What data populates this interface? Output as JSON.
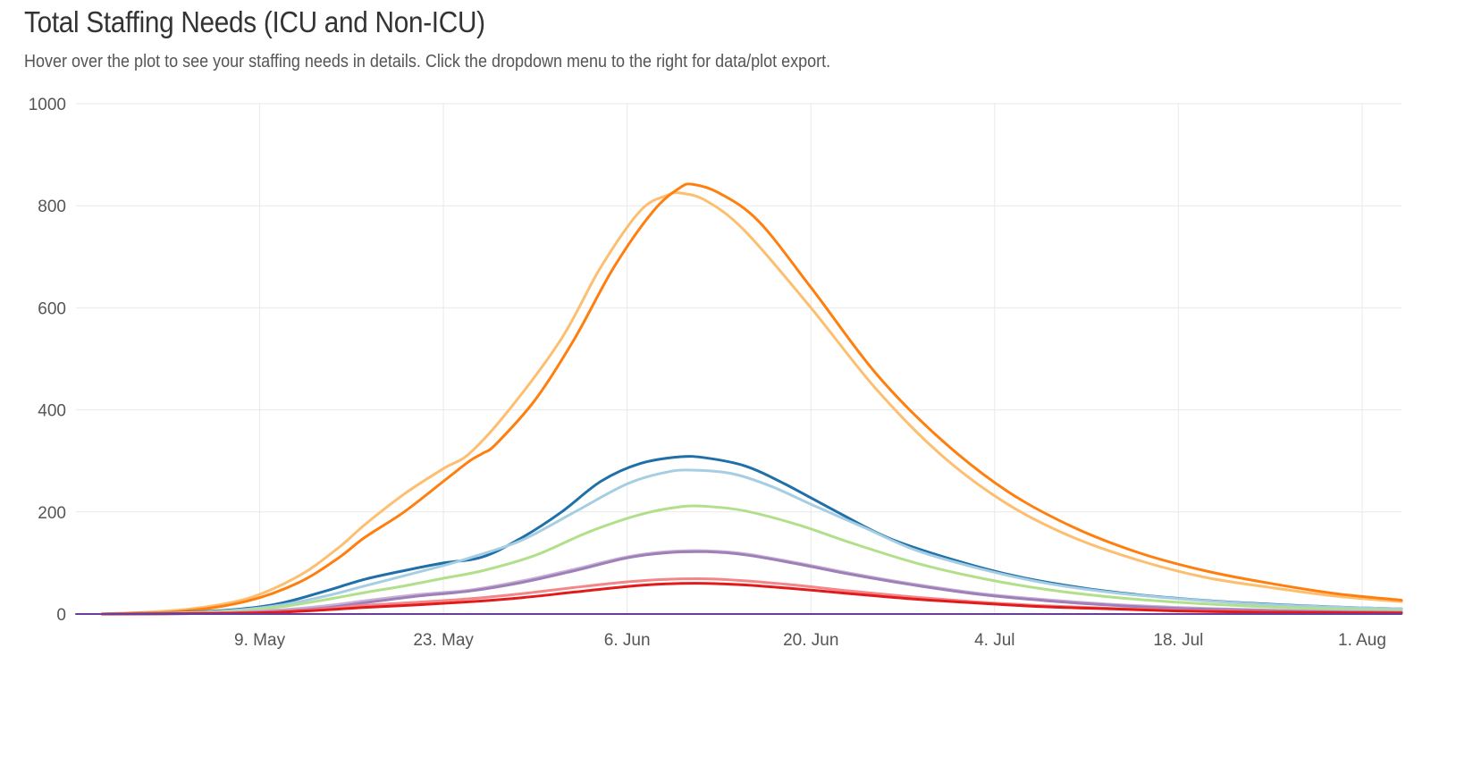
{
  "header": {
    "title": "Total Staffing Needs (ICU and Non-ICU)",
    "subtitle": "Hover over the plot to see your staffing needs in details. Click the dropdown menu to the right for data/plot export."
  },
  "chart_data": {
    "type": "line",
    "title": "Total Staffing Needs (ICU and Non-ICU)",
    "xlabel": "",
    "ylabel": "",
    "ylim": [
      0,
      1000
    ],
    "yticks": [
      0,
      200,
      400,
      600,
      800,
      1000
    ],
    "xlim": [
      "2020-04-25",
      "2020-08-04"
    ],
    "xticks": [
      {
        "date": "2020-05-09",
        "label": "9. May"
      },
      {
        "date": "2020-05-23",
        "label": "23. May"
      },
      {
        "date": "2020-06-06",
        "label": "6. Jun"
      },
      {
        "date": "2020-06-20",
        "label": "20. Jun"
      },
      {
        "date": "2020-07-04",
        "label": "4. Jul"
      },
      {
        "date": "2020-07-18",
        "label": "18. Jul"
      },
      {
        "date": "2020-08-01",
        "label": "1. Aug"
      }
    ],
    "grid": true,
    "legend": "none",
    "series": [
      {
        "color": "#fdbf6f",
        "points": [
          [
            "2020-04-27",
            0
          ],
          [
            "2020-05-03",
            8
          ],
          [
            "2020-05-08",
            30
          ],
          [
            "2020-05-12",
            75
          ],
          [
            "2020-05-15",
            130
          ],
          [
            "2020-05-17",
            175
          ],
          [
            "2020-05-20",
            235
          ],
          [
            "2020-05-23",
            285
          ],
          [
            "2020-05-25",
            315
          ],
          [
            "2020-05-28",
            400
          ],
          [
            "2020-06-01",
            540
          ],
          [
            "2020-06-04",
            680
          ],
          [
            "2020-06-07",
            790
          ],
          [
            "2020-06-09",
            820
          ],
          [
            "2020-06-10",
            825
          ],
          [
            "2020-06-12",
            810
          ],
          [
            "2020-06-15",
            750
          ],
          [
            "2020-06-20",
            600
          ],
          [
            "2020-06-25",
            440
          ],
          [
            "2020-06-30",
            310
          ],
          [
            "2020-07-05",
            215
          ],
          [
            "2020-07-10",
            150
          ],
          [
            "2020-07-15",
            105
          ],
          [
            "2020-07-20",
            72
          ],
          [
            "2020-07-25",
            52
          ],
          [
            "2020-07-30",
            35
          ],
          [
            "2020-08-04",
            24
          ]
        ]
      },
      {
        "color": "#ff7f0e",
        "points": [
          [
            "2020-04-27",
            0
          ],
          [
            "2020-05-03",
            5
          ],
          [
            "2020-05-08",
            25
          ],
          [
            "2020-05-12",
            62
          ],
          [
            "2020-05-15",
            110
          ],
          [
            "2020-05-17",
            150
          ],
          [
            "2020-05-20",
            200
          ],
          [
            "2020-05-23",
            260
          ],
          [
            "2020-05-25",
            300
          ],
          [
            "2020-05-26",
            315
          ],
          [
            "2020-05-27",
            333
          ],
          [
            "2020-05-30",
            420
          ],
          [
            "2020-06-02",
            540
          ],
          [
            "2020-06-05",
            680
          ],
          [
            "2020-06-08",
            790
          ],
          [
            "2020-06-10",
            835
          ],
          [
            "2020-06-11",
            842
          ],
          [
            "2020-06-13",
            825
          ],
          [
            "2020-06-16",
            770
          ],
          [
            "2020-06-20",
            640
          ],
          [
            "2020-06-25",
            470
          ],
          [
            "2020-06-30",
            340
          ],
          [
            "2020-07-05",
            240
          ],
          [
            "2020-07-10",
            170
          ],
          [
            "2020-07-15",
            120
          ],
          [
            "2020-07-20",
            85
          ],
          [
            "2020-07-25",
            60
          ],
          [
            "2020-07-30",
            40
          ],
          [
            "2020-08-04",
            27
          ]
        ]
      },
      {
        "color": "#1f6fa8",
        "points": [
          [
            "2020-04-27",
            0
          ],
          [
            "2020-05-05",
            5
          ],
          [
            "2020-05-10",
            18
          ],
          [
            "2020-05-14",
            45
          ],
          [
            "2020-05-17",
            68
          ],
          [
            "2020-05-20",
            85
          ],
          [
            "2020-05-23",
            100
          ],
          [
            "2020-05-26",
            112
          ],
          [
            "2020-05-29",
            150
          ],
          [
            "2020-06-01",
            200
          ],
          [
            "2020-06-04",
            260
          ],
          [
            "2020-06-07",
            295
          ],
          [
            "2020-06-10",
            308
          ],
          [
            "2020-06-12",
            306
          ],
          [
            "2020-06-15",
            290
          ],
          [
            "2020-06-18",
            255
          ],
          [
            "2020-06-22",
            200
          ],
          [
            "2020-06-26",
            148
          ],
          [
            "2020-07-01",
            105
          ],
          [
            "2020-07-06",
            72
          ],
          [
            "2020-07-11",
            50
          ],
          [
            "2020-07-16",
            35
          ],
          [
            "2020-07-21",
            25
          ],
          [
            "2020-07-26",
            18
          ],
          [
            "2020-07-31",
            13
          ],
          [
            "2020-08-04",
            10
          ]
        ]
      },
      {
        "color": "#a6cee3",
        "points": [
          [
            "2020-04-27",
            0
          ],
          [
            "2020-05-05",
            4
          ],
          [
            "2020-05-10",
            15
          ],
          [
            "2020-05-14",
            35
          ],
          [
            "2020-05-17",
            55
          ],
          [
            "2020-05-20",
            75
          ],
          [
            "2020-05-23",
            95
          ],
          [
            "2020-05-25",
            110
          ],
          [
            "2020-05-29",
            145
          ],
          [
            "2020-06-02",
            200
          ],
          [
            "2020-06-06",
            255
          ],
          [
            "2020-06-09",
            278
          ],
          [
            "2020-06-11",
            282
          ],
          [
            "2020-06-14",
            275
          ],
          [
            "2020-06-17",
            250
          ],
          [
            "2020-06-20",
            215
          ],
          [
            "2020-06-24",
            170
          ],
          [
            "2020-06-28",
            125
          ],
          [
            "2020-07-03",
            88
          ],
          [
            "2020-07-08",
            60
          ],
          [
            "2020-07-13",
            42
          ],
          [
            "2020-07-18",
            30
          ],
          [
            "2020-07-23",
            21
          ],
          [
            "2020-07-28",
            15
          ],
          [
            "2020-08-04",
            10
          ]
        ]
      },
      {
        "color": "#b2df8a",
        "points": [
          [
            "2020-04-27",
            0
          ],
          [
            "2020-05-05",
            3
          ],
          [
            "2020-05-10",
            12
          ],
          [
            "2020-05-14",
            28
          ],
          [
            "2020-05-17",
            42
          ],
          [
            "2020-05-20",
            55
          ],
          [
            "2020-05-23",
            70
          ],
          [
            "2020-05-26",
            85
          ],
          [
            "2020-05-30",
            115
          ],
          [
            "2020-06-03",
            160
          ],
          [
            "2020-06-07",
            195
          ],
          [
            "2020-06-10",
            210
          ],
          [
            "2020-06-12",
            211
          ],
          [
            "2020-06-15",
            202
          ],
          [
            "2020-06-19",
            175
          ],
          [
            "2020-06-23",
            140
          ],
          [
            "2020-06-28",
            100
          ],
          [
            "2020-07-03",
            70
          ],
          [
            "2020-07-08",
            48
          ],
          [
            "2020-07-13",
            33
          ],
          [
            "2020-07-18",
            23
          ],
          [
            "2020-07-23",
            16
          ],
          [
            "2020-07-28",
            11
          ],
          [
            "2020-08-04",
            7
          ]
        ]
      },
      {
        "color": "#cab2d6",
        "points": [
          [
            "2020-04-27",
            0
          ],
          [
            "2020-05-05",
            2
          ],
          [
            "2020-05-10",
            7
          ],
          [
            "2020-05-14",
            16
          ],
          [
            "2020-05-17",
            26
          ],
          [
            "2020-05-21",
            38
          ],
          [
            "2020-05-25",
            47
          ],
          [
            "2020-05-29",
            65
          ],
          [
            "2020-06-02",
            88
          ],
          [
            "2020-06-06",
            112
          ],
          [
            "2020-06-09",
            122
          ],
          [
            "2020-06-12",
            124
          ],
          [
            "2020-06-15",
            118
          ],
          [
            "2020-06-19",
            100
          ],
          [
            "2020-06-23",
            80
          ],
          [
            "2020-06-28",
            58
          ],
          [
            "2020-07-03",
            40
          ],
          [
            "2020-07-08",
            28
          ],
          [
            "2020-07-13",
            19
          ],
          [
            "2020-07-18",
            13
          ],
          [
            "2020-07-23",
            9
          ],
          [
            "2020-07-28",
            6
          ],
          [
            "2020-08-04",
            4
          ]
        ]
      },
      {
        "color": "#9f7fb8",
        "points": [
          [
            "2020-04-27",
            0
          ],
          [
            "2020-05-05",
            1
          ],
          [
            "2020-05-10",
            5
          ],
          [
            "2020-05-14",
            12
          ],
          [
            "2020-05-17",
            22
          ],
          [
            "2020-05-21",
            35
          ],
          [
            "2020-05-25",
            45
          ],
          [
            "2020-05-29",
            62
          ],
          [
            "2020-06-02",
            85
          ],
          [
            "2020-06-06",
            110
          ],
          [
            "2020-06-09",
            120
          ],
          [
            "2020-06-12",
            122
          ],
          [
            "2020-06-15",
            116
          ],
          [
            "2020-06-19",
            98
          ],
          [
            "2020-06-23",
            78
          ],
          [
            "2020-06-28",
            56
          ],
          [
            "2020-07-03",
            38
          ],
          [
            "2020-07-08",
            26
          ],
          [
            "2020-07-13",
            17
          ],
          [
            "2020-07-18",
            11
          ],
          [
            "2020-07-23",
            8
          ],
          [
            "2020-07-28",
            5
          ],
          [
            "2020-08-04",
            3
          ]
        ]
      },
      {
        "color": "#f4868a",
        "points": [
          [
            "2020-04-27",
            0
          ],
          [
            "2020-05-05",
            1
          ],
          [
            "2020-05-10",
            4
          ],
          [
            "2020-05-14",
            10
          ],
          [
            "2020-05-17",
            17
          ],
          [
            "2020-05-21",
            23
          ],
          [
            "2020-05-25",
            30
          ],
          [
            "2020-05-29",
            40
          ],
          [
            "2020-06-02",
            52
          ],
          [
            "2020-06-06",
            63
          ],
          [
            "2020-06-09",
            68
          ],
          [
            "2020-06-12",
            69
          ],
          [
            "2020-06-15",
            65
          ],
          [
            "2020-06-19",
            56
          ],
          [
            "2020-06-23",
            45
          ],
          [
            "2020-06-28",
            33
          ],
          [
            "2020-07-03",
            23
          ],
          [
            "2020-07-08",
            16
          ],
          [
            "2020-07-13",
            11
          ],
          [
            "2020-07-18",
            7
          ],
          [
            "2020-07-23",
            5
          ],
          [
            "2020-07-28",
            3
          ],
          [
            "2020-08-04",
            2
          ]
        ]
      },
      {
        "color": "#e31a1c",
        "points": [
          [
            "2020-04-27",
            0
          ],
          [
            "2020-05-05",
            1
          ],
          [
            "2020-05-10",
            3
          ],
          [
            "2020-05-14",
            8
          ],
          [
            "2020-05-17",
            13
          ],
          [
            "2020-05-21",
            18
          ],
          [
            "2020-05-25",
            24
          ],
          [
            "2020-05-29",
            32
          ],
          [
            "2020-06-02",
            43
          ],
          [
            "2020-06-06",
            54
          ],
          [
            "2020-06-09",
            59
          ],
          [
            "2020-06-12",
            60
          ],
          [
            "2020-06-15",
            57
          ],
          [
            "2020-06-19",
            49
          ],
          [
            "2020-06-23",
            40
          ],
          [
            "2020-06-28",
            29
          ],
          [
            "2020-07-03",
            21
          ],
          [
            "2020-07-08",
            14
          ],
          [
            "2020-07-13",
            10
          ],
          [
            "2020-07-18",
            6
          ],
          [
            "2020-07-23",
            4
          ],
          [
            "2020-07-28",
            3
          ],
          [
            "2020-08-04",
            2
          ]
        ]
      },
      {
        "color": "#6a3d9a",
        "points": [
          [
            "2020-04-25",
            0
          ],
          [
            "2020-08-04",
            0
          ]
        ]
      }
    ]
  }
}
